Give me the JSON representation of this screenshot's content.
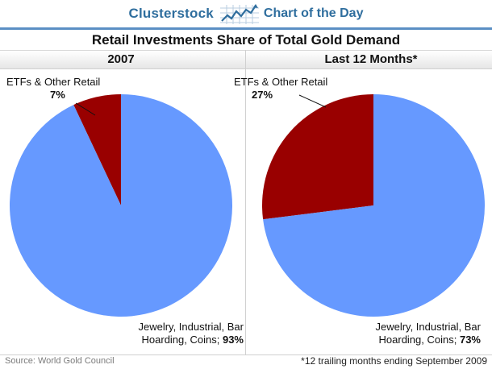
{
  "header": {
    "brand": "Clusterstock",
    "tagline": "Chart of the Day"
  },
  "title": "Retail Investments Share of Total Gold Demand",
  "colors": {
    "brand": "#2f6e9e",
    "jewelry_slice": "#6699ff",
    "etf_slice": "#990000"
  },
  "chart_data": [
    {
      "type": "pie",
      "title": "2007",
      "slices": [
        {
          "label": "ETFs & Other Retail",
          "value": 7,
          "value_label": "7%",
          "color": "#990000"
        },
        {
          "label": "Jewelry, Industrial, Bar Hoarding, Coins",
          "value": 93,
          "value_label": "93%",
          "color": "#6699ff"
        }
      ]
    },
    {
      "type": "pie",
      "title": "Last 12 Months*",
      "slices": [
        {
          "label": "ETFs & Other Retail",
          "value": 27,
          "value_label": "27%",
          "color": "#990000"
        },
        {
          "label": "Jewelry, Industrial, Bar Hoarding, Coins",
          "value": 73,
          "value_label": "73%",
          "color": "#6699ff"
        }
      ]
    }
  ],
  "labels": {
    "left": {
      "etf_name": "ETFs & Other Retail",
      "etf_pct": "7%",
      "jewelry_line1": "Jewelry, Industrial, Bar",
      "jewelry_line2": "Hoarding, Coins;",
      "jewelry_pct": "93%"
    },
    "right": {
      "etf_name": "ETFs & Other Retail",
      "etf_pct": "27%",
      "jewelry_line1": "Jewelry, Industrial, Bar",
      "jewelry_line2": "Hoarding, Coins;",
      "jewelry_pct": "73%"
    }
  },
  "footer": {
    "source": "Source: World Gold Council",
    "note": "*12 trailing months ending September 2009"
  }
}
